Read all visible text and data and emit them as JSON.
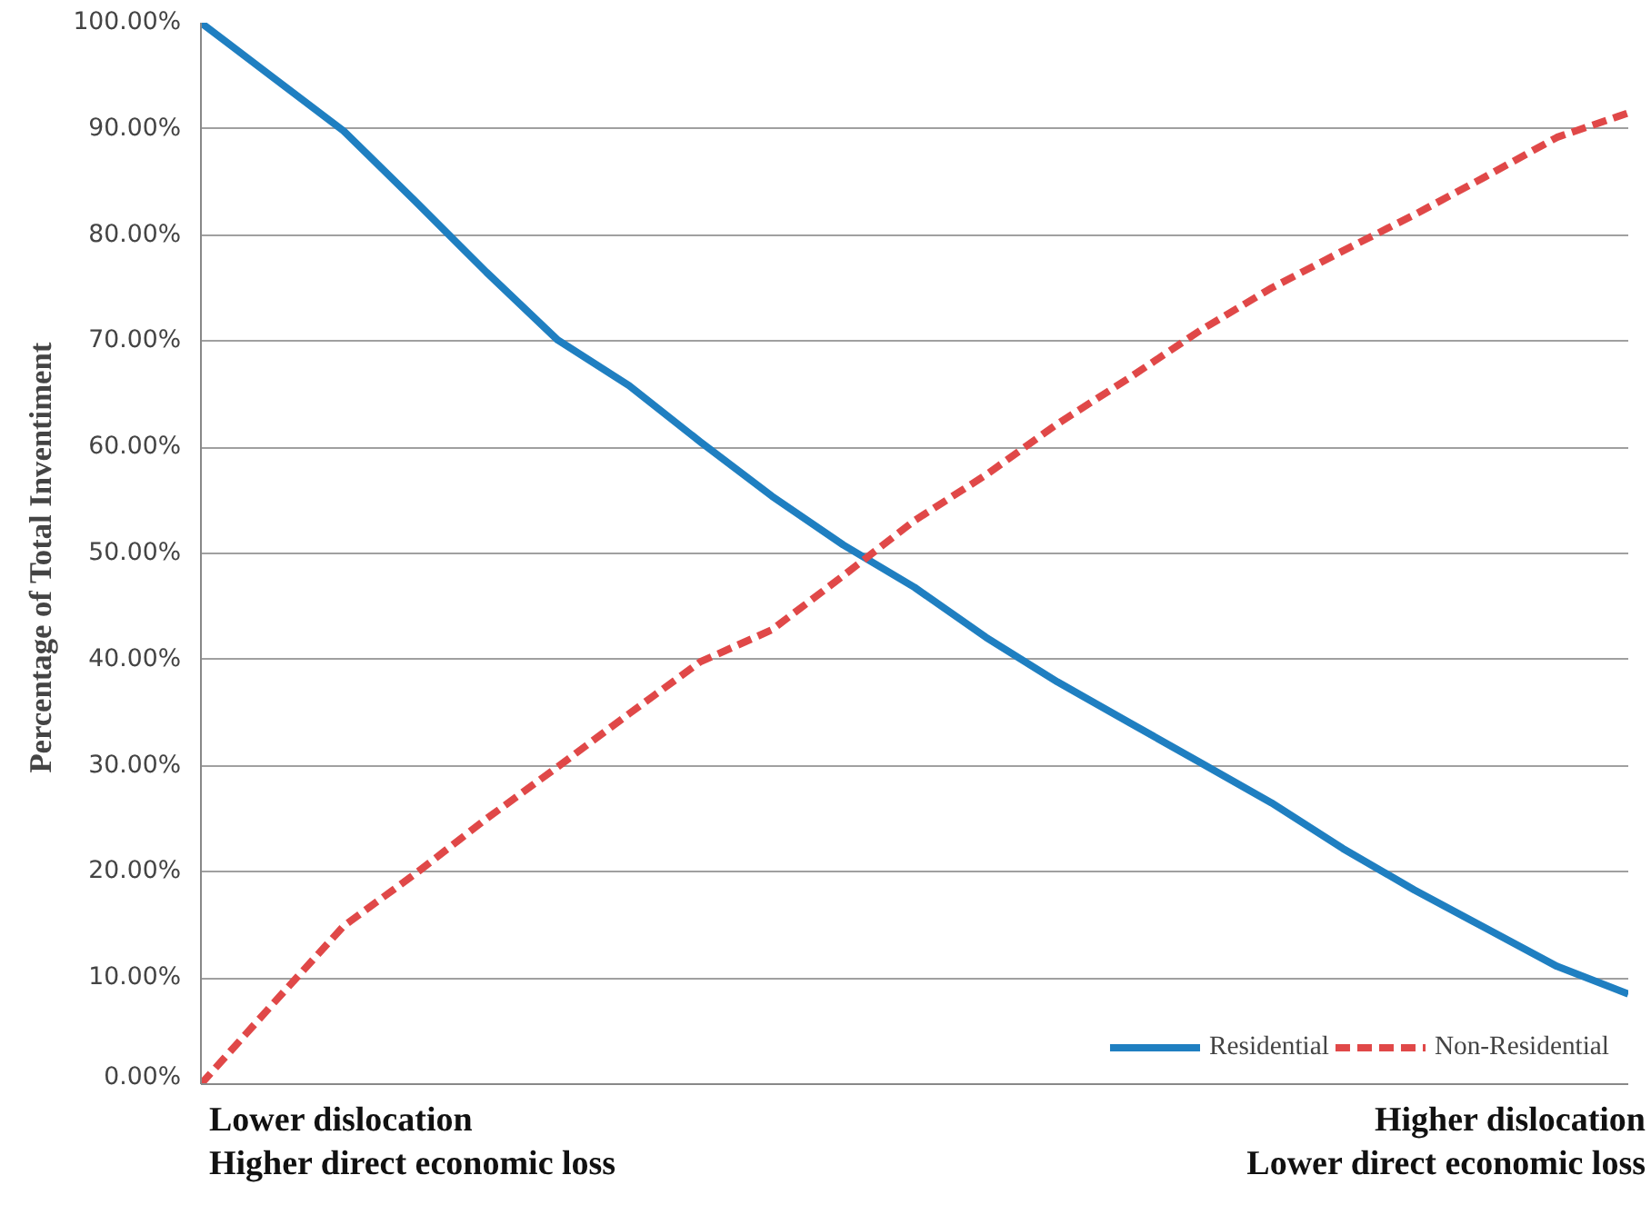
{
  "chart_data": {
    "type": "line",
    "ylabel": "Percentage of Total  Inventiment",
    "categories": [
      null,
      null,
      null,
      null,
      null,
      null,
      null,
      null,
      null,
      null,
      null,
      null,
      null,
      null,
      null,
      null,
      null,
      null,
      null,
      null,
      null
    ],
    "series": [
      {
        "name": "Residential",
        "color": "#1f7fc1",
        "line_style": "solid",
        "values": [
          100,
          94.9,
          89.8,
          83.2,
          76.5,
          70.1,
          65.8,
          60.5,
          55.4,
          50.8,
          46.8,
          42.1,
          37.9,
          34.1,
          30.3,
          26.5,
          22.2,
          18.3,
          14.7,
          11.1,
          8.5
        ]
      },
      {
        "name": "Non-Residential",
        "color": "#e04848",
        "line_style": "dashed",
        "values": [
          0,
          7.5,
          14.9,
          19.8,
          25.0,
          29.9,
          34.9,
          39.8,
          42.8,
          47.9,
          53.1,
          57.4,
          62.2,
          66.5,
          71.0,
          75.0,
          78.5,
          81.9,
          85.5,
          89.2,
          91.5
        ]
      }
    ],
    "ylim": [
      0,
      100
    ],
    "yticks": [
      {
        "value": 0,
        "label": "0.00%"
      },
      {
        "value": 10,
        "label": "10.00%"
      },
      {
        "value": 20,
        "label": "20.00%"
      },
      {
        "value": 30,
        "label": "30.00%"
      },
      {
        "value": 40,
        "label": "40.00%"
      },
      {
        "value": 50,
        "label": "50.00%"
      },
      {
        "value": 60,
        "label": "60.00%"
      },
      {
        "value": 70,
        "label": "70.00%"
      },
      {
        "value": 80,
        "label": "80.00%"
      },
      {
        "value": 90,
        "label": "90.00%"
      },
      {
        "value": 100,
        "label": "100.00%"
      }
    ],
    "grid": "y",
    "legend": "bottom right",
    "marker": "none",
    "annotations": [
      "Lower dislocation",
      "Higher direct economic loss",
      "Higher dislocation",
      "Lower direct economic loss"
    ]
  }
}
